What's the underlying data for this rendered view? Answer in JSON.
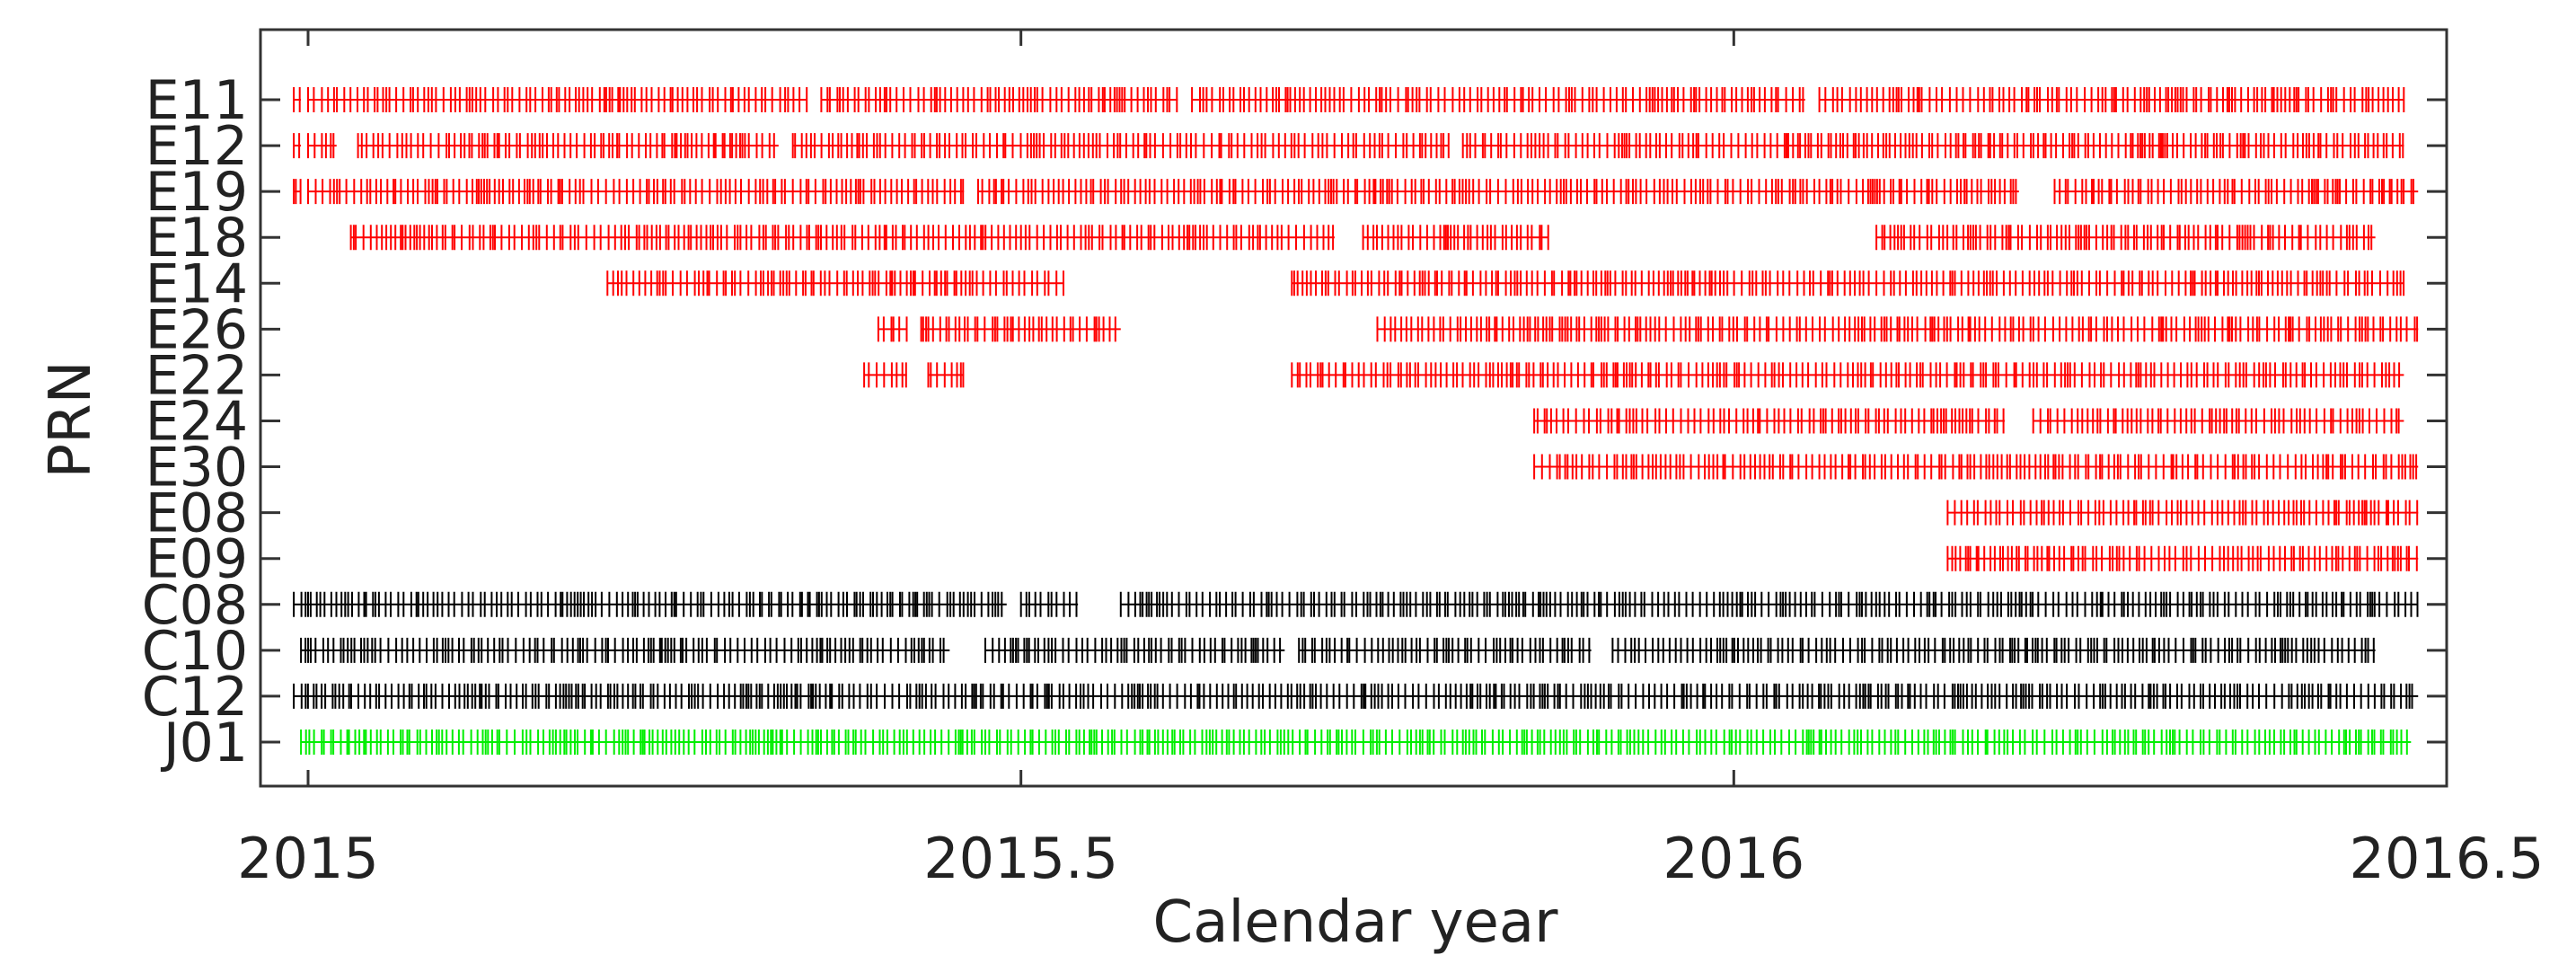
{
  "chart_data": {
    "type": "scatter",
    "xlabel": "Calendar year",
    "ylabel": "PRN",
    "xlim": [
      2014.97,
      2016.5
    ],
    "xticks": [
      2015,
      2015.5,
      2016,
      2016.5
    ],
    "xtick_labels": [
      "2015",
      "2015.5",
      "2016",
      "2016.5"
    ],
    "marker": "+",
    "grid": false,
    "legend": "none",
    "series": [
      {
        "name": "E11",
        "color": "#ff0000",
        "coverage": [
          [
            2014.99,
            2014.995
          ],
          [
            2015.0,
            2015.35
          ],
          [
            2015.36,
            2015.61
          ],
          [
            2015.62,
            2016.05
          ],
          [
            2016.06,
            2016.47
          ]
        ]
      },
      {
        "name": "E12",
        "color": "#ff0000",
        "coverage": [
          [
            2014.99,
            2014.995
          ],
          [
            2015.0,
            2015.02
          ],
          [
            2015.035,
            2015.33
          ],
          [
            2015.34,
            2015.8
          ],
          [
            2015.81,
            2016.47
          ]
        ]
      },
      {
        "name": "E19",
        "color": "#ff0000",
        "coverage": [
          [
            2014.99,
            2014.995
          ],
          [
            2015.0,
            2015.46
          ],
          [
            2015.47,
            2016.2
          ],
          [
            2016.225,
            2016.48
          ]
        ]
      },
      {
        "name": "E18",
        "color": "#ff0000",
        "coverage": [
          [
            2015.03,
            2015.72
          ],
          [
            2015.74,
            2015.87
          ],
          [
            2016.1,
            2016.45
          ]
        ]
      },
      {
        "name": "E14",
        "color": "#ff0000",
        "coverage": [
          [
            2015.21,
            2015.53
          ],
          [
            2015.69,
            2016.47
          ]
        ]
      },
      {
        "name": "E26",
        "color": "#ff0000",
        "coverage": [
          [
            2015.4,
            2015.42
          ],
          [
            2015.43,
            2015.57
          ],
          [
            2015.75,
            2016.48
          ]
        ]
      },
      {
        "name": "E22",
        "color": "#ff0000",
        "coverage": [
          [
            2015.39,
            2015.42
          ],
          [
            2015.435,
            2015.46
          ],
          [
            2015.69,
            2016.47
          ]
        ]
      },
      {
        "name": "E24",
        "color": "#ff0000",
        "coverage": [
          [
            2015.86,
            2016.19
          ],
          [
            2016.21,
            2016.47
          ]
        ]
      },
      {
        "name": "E30",
        "color": "#ff0000",
        "coverage": [
          [
            2015.86,
            2016.48
          ]
        ]
      },
      {
        "name": "E08",
        "color": "#ff0000",
        "coverage": [
          [
            2016.15,
            2016.48
          ]
        ]
      },
      {
        "name": "E09",
        "color": "#ff0000",
        "coverage": [
          [
            2016.15,
            2016.48
          ]
        ]
      },
      {
        "name": "C08",
        "color": "#000000",
        "coverage": [
          [
            2014.99,
            2015.0
          ],
          [
            2015.0,
            2015.49
          ],
          [
            2015.5,
            2015.54
          ],
          [
            2015.57,
            2016.48
          ]
        ]
      },
      {
        "name": "C10",
        "color": "#000000",
        "coverage": [
          [
            2014.995,
            2015.45
          ],
          [
            2015.475,
            2015.685
          ],
          [
            2015.695,
            2015.9
          ],
          [
            2015.915,
            2016.45
          ]
        ]
      },
      {
        "name": "C12",
        "color": "#000000",
        "coverage": [
          [
            2014.99,
            2016.48
          ]
        ]
      },
      {
        "name": "J01",
        "color": "#00ee00",
        "coverage": [
          [
            2014.995,
            2016.475
          ]
        ]
      }
    ]
  }
}
